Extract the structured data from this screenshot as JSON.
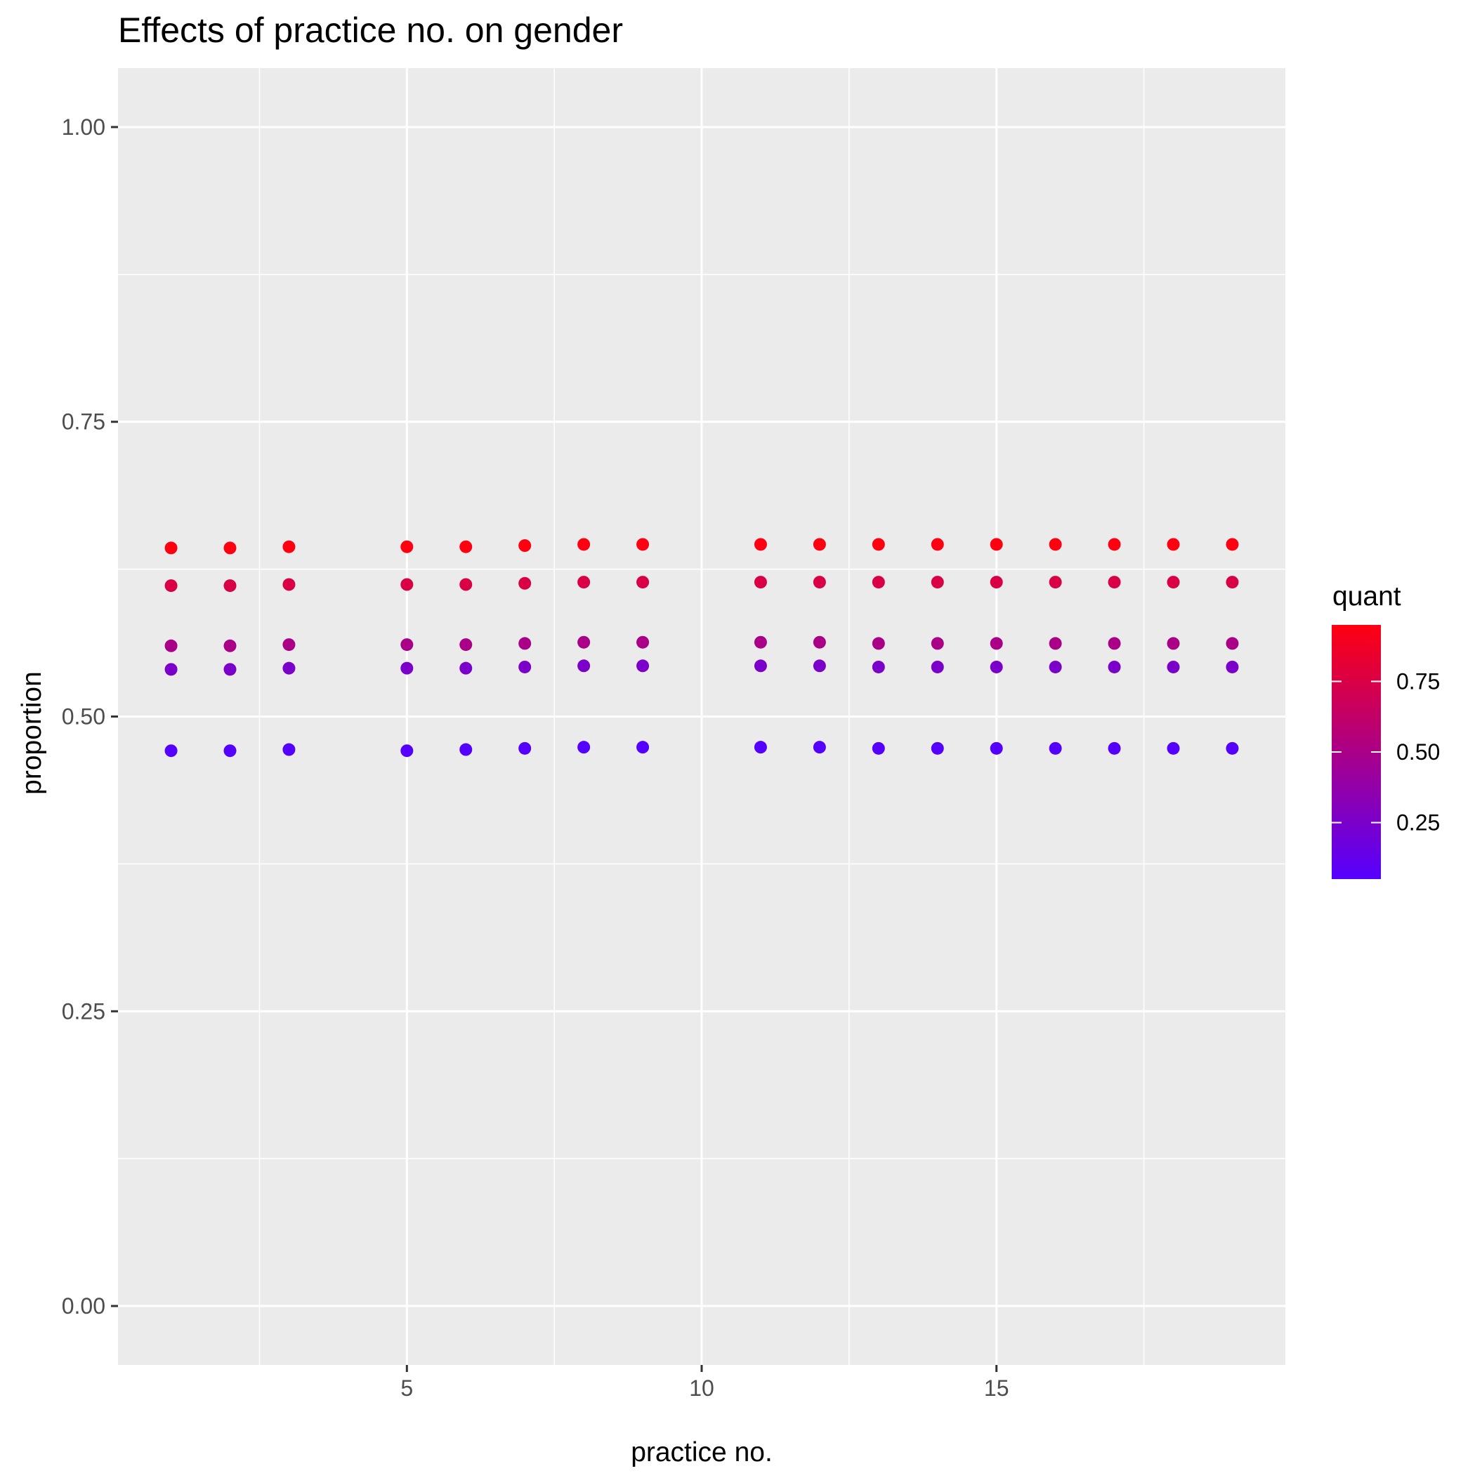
{
  "chart_data": {
    "type": "scatter",
    "title": "Effects of practice no. on gender",
    "xlabel": "practice no.",
    "ylabel": "proportion",
    "xlim": [
      0.1,
      19.9
    ],
    "ylim": [
      -0.05,
      1.05
    ],
    "x_ticks": [
      {
        "value": 5,
        "label": "5"
      },
      {
        "value": 10,
        "label": "10"
      },
      {
        "value": 15,
        "label": "15"
      }
    ],
    "y_ticks": [
      {
        "value": 0.0,
        "label": "0.00"
      },
      {
        "value": 0.25,
        "label": "0.25"
      },
      {
        "value": 0.5,
        "label": "0.50"
      },
      {
        "value": 0.75,
        "label": "0.75"
      },
      {
        "value": 1.0,
        "label": "1.00"
      }
    ],
    "grid": true,
    "color_legend": {
      "title": "quant",
      "position": "right",
      "range": [
        0.05,
        0.95
      ],
      "low_color": "#5500ff",
      "high_color": "#ff0011",
      "ticks": [
        {
          "value": 0.25,
          "label": "0.25"
        },
        {
          "value": 0.5,
          "label": "0.50"
        },
        {
          "value": 0.75,
          "label": "0.75"
        }
      ]
    },
    "x": [
      1,
      2,
      3,
      5,
      6,
      7,
      8,
      9,
      11,
      12,
      13,
      14,
      15,
      16,
      17,
      18,
      19
    ],
    "series": [
      {
        "quant": 0.05,
        "y": [
          0.471,
          0.471,
          0.472,
          0.471,
          0.472,
          0.473,
          0.474,
          0.474,
          0.474,
          0.474,
          0.473,
          0.473,
          0.473,
          0.473,
          0.473,
          0.473,
          0.473
        ]
      },
      {
        "quant": 0.25,
        "y": [
          0.54,
          0.54,
          0.541,
          0.541,
          0.541,
          0.542,
          0.543,
          0.543,
          0.543,
          0.543,
          0.542,
          0.542,
          0.542,
          0.542,
          0.542,
          0.542,
          0.542
        ]
      },
      {
        "quant": 0.5,
        "y": [
          0.56,
          0.56,
          0.561,
          0.561,
          0.561,
          0.562,
          0.563,
          0.563,
          0.563,
          0.563,
          0.562,
          0.562,
          0.562,
          0.562,
          0.562,
          0.562,
          0.562
        ]
      },
      {
        "quant": 0.75,
        "y": [
          0.611,
          0.611,
          0.612,
          0.612,
          0.612,
          0.613,
          0.614,
          0.614,
          0.614,
          0.614,
          0.614,
          0.614,
          0.614,
          0.614,
          0.614,
          0.614,
          0.614
        ]
      },
      {
        "quant": 0.95,
        "y": [
          0.643,
          0.643,
          0.644,
          0.644,
          0.644,
          0.645,
          0.646,
          0.646,
          0.646,
          0.646,
          0.646,
          0.646,
          0.646,
          0.646,
          0.646,
          0.646,
          0.646
        ]
      }
    ]
  }
}
